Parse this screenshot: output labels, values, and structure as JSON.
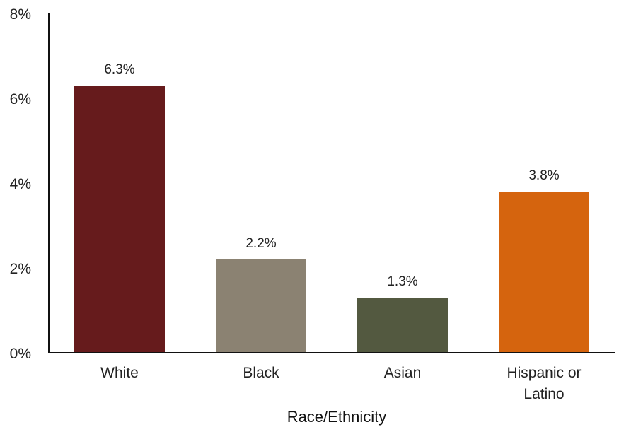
{
  "chart_data": {
    "type": "bar",
    "categories": [
      [
        "White"
      ],
      [
        "Black"
      ],
      [
        "Asian"
      ],
      [
        "Hispanic or",
        "Latino"
      ]
    ],
    "values": [
      6.3,
      2.2,
      1.3,
      3.8
    ],
    "data_labels": [
      "6.3%",
      "2.2%",
      "1.3%",
      "3.8%"
    ],
    "colors": [
      "#661b1c",
      "#8b8272",
      "#535940",
      "#d5640e"
    ],
    "title": "",
    "xlabel": "Race/Ethnicity",
    "ylabel": "",
    "ylim": [
      0,
      8
    ],
    "yticks": [
      0,
      2,
      4,
      6,
      8
    ],
    "ytick_labels": [
      "0%",
      "2%",
      "4%",
      "6%",
      "8%"
    ],
    "grid": false,
    "legend": "none"
  }
}
